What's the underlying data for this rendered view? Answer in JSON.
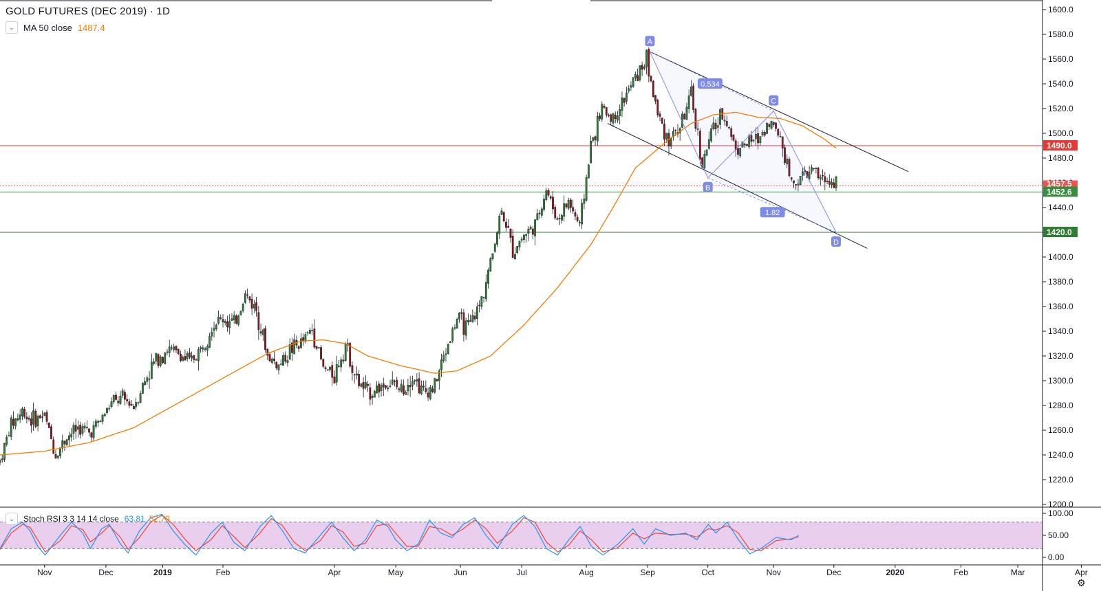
{
  "header": {
    "title": "GOLD FUTURES (DEC 2019) · 1D",
    "ma_label": "MA 50 close",
    "ma_value": "1487.4"
  },
  "stoch": {
    "label": "Stoch RSI 3 3 14 14 close",
    "k_value": "63.81",
    "d_value": "52.79",
    "upper_band": 80,
    "lower_band": 20,
    "ticks": [
      "100.00",
      "50.00",
      "0.00"
    ],
    "k_points": [
      [
        0,
        20
      ],
      [
        1.5,
        65
      ],
      [
        3,
        80
      ],
      [
        4,
        60
      ],
      [
        5,
        25
      ],
      [
        6,
        5
      ],
      [
        8,
        50
      ],
      [
        9.5,
        80
      ],
      [
        11,
        55
      ],
      [
        12,
        20
      ],
      [
        13.5,
        65
      ],
      [
        14.5,
        75
      ],
      [
        16,
        30
      ],
      [
        17,
        10
      ],
      [
        18.5,
        60
      ],
      [
        20,
        90
      ],
      [
        21.5,
        98
      ],
      [
        23,
        60
      ],
      [
        24.5,
        30
      ],
      [
        26,
        5
      ],
      [
        28,
        55
      ],
      [
        29.5,
        80
      ],
      [
        31,
        35
      ],
      [
        32.5,
        15
      ],
      [
        34.5,
        70
      ],
      [
        36,
        95
      ],
      [
        37.5,
        60
      ],
      [
        39,
        20
      ],
      [
        40.5,
        10
      ],
      [
        42.5,
        50
      ],
      [
        44,
        80
      ],
      [
        45.5,
        45
      ],
      [
        47,
        15
      ],
      [
        48.5,
        40
      ],
      [
        50,
        85
      ],
      [
        51.5,
        70
      ],
      [
        52.5,
        40
      ],
      [
        54,
        15
      ],
      [
        55.5,
        30
      ],
      [
        57,
        85
      ],
      [
        58.5,
        55
      ],
      [
        60,
        45
      ],
      [
        61.5,
        75
      ],
      [
        63,
        90
      ],
      [
        64.5,
        50
      ],
      [
        66,
        20
      ],
      [
        68,
        75
      ],
      [
        69.5,
        95
      ],
      [
        71,
        70
      ],
      [
        72.5,
        20
      ],
      [
        74,
        5
      ],
      [
        75.5,
        40
      ],
      [
        77,
        70
      ],
      [
        78.5,
        25
      ],
      [
        80,
        5
      ],
      [
        82,
        30
      ],
      [
        84,
        65
      ],
      [
        85.5,
        30
      ],
      [
        87,
        65
      ],
      [
        89,
        50
      ],
      [
        91,
        55
      ],
      [
        92.5,
        40
      ],
      [
        94,
        75
      ],
      [
        95,
        55
      ],
      [
        96.5,
        80
      ],
      [
        98,
        40
      ],
      [
        99.5,
        8
      ],
      [
        101,
        20
      ],
      [
        103,
        45
      ],
      [
        105,
        40
      ],
      [
        106,
        50
      ]
    ],
    "d_points": [
      [
        0,
        18
      ],
      [
        1.5,
        55
      ],
      [
        3,
        75
      ],
      [
        4,
        68
      ],
      [
        5,
        40
      ],
      [
        6,
        12
      ],
      [
        8,
        38
      ],
      [
        9.5,
        72
      ],
      [
        11,
        63
      ],
      [
        12,
        35
      ],
      [
        13.5,
        55
      ],
      [
        14.5,
        72
      ],
      [
        16,
        45
      ],
      [
        17,
        18
      ],
      [
        18.5,
        45
      ],
      [
        20,
        80
      ],
      [
        21.5,
        96
      ],
      [
        23,
        75
      ],
      [
        24.5,
        42
      ],
      [
        26,
        15
      ],
      [
        28,
        40
      ],
      [
        29.5,
        72
      ],
      [
        31,
        48
      ],
      [
        32.5,
        22
      ],
      [
        34.5,
        55
      ],
      [
        36,
        88
      ],
      [
        37.5,
        72
      ],
      [
        39,
        35
      ],
      [
        40.5,
        15
      ],
      [
        42.5,
        38
      ],
      [
        44,
        72
      ],
      [
        45.5,
        58
      ],
      [
        47,
        25
      ],
      [
        48.5,
        32
      ],
      [
        50,
        72
      ],
      [
        51.5,
        76
      ],
      [
        52.5,
        55
      ],
      [
        54,
        25
      ],
      [
        55.5,
        25
      ],
      [
        57,
        70
      ],
      [
        58.5,
        65
      ],
      [
        60,
        50
      ],
      [
        61.5,
        65
      ],
      [
        63,
        85
      ],
      [
        64.5,
        65
      ],
      [
        66,
        32
      ],
      [
        68,
        60
      ],
      [
        69.5,
        90
      ],
      [
        71,
        80
      ],
      [
        72.5,
        35
      ],
      [
        74,
        12
      ],
      [
        75.5,
        28
      ],
      [
        77,
        60
      ],
      [
        78.5,
        40
      ],
      [
        80,
        12
      ],
      [
        82,
        22
      ],
      [
        84,
        55
      ],
      [
        85.5,
        42
      ],
      [
        87,
        55
      ],
      [
        89,
        52
      ],
      [
        91,
        53
      ],
      [
        92.5,
        46
      ],
      [
        94,
        65
      ],
      [
        95,
        62
      ],
      [
        96.5,
        72
      ],
      [
        98,
        55
      ],
      [
        99.5,
        18
      ],
      [
        101,
        15
      ],
      [
        103,
        38
      ],
      [
        105,
        42
      ],
      [
        106,
        47
      ]
    ]
  },
  "price_axis": {
    "ticks": [
      "1600.0",
      "1580.0",
      "1560.0",
      "1540.0",
      "1520.0",
      "1500.0",
      "1480.0",
      "1460.0",
      "1440.0",
      "1420.0",
      "1400.0",
      "1380.0",
      "1360.0",
      "1340.0",
      "1320.0",
      "1300.0",
      "1280.0",
      "1260.0",
      "1240.0",
      "1220.0",
      "1200.0"
    ]
  },
  "time_axis": {
    "labels": [
      {
        "text": "Nov",
        "week": 4,
        "bold": false
      },
      {
        "text": "Dec",
        "week": 9.5,
        "bold": false
      },
      {
        "text": "2019",
        "week": 14.6,
        "bold": true
      },
      {
        "text": "Feb",
        "week": 20,
        "bold": false
      },
      {
        "text": "Apr",
        "week": 30,
        "bold": false
      },
      {
        "text": "May",
        "week": 35.5,
        "bold": false
      },
      {
        "text": "Jun",
        "week": 41.3,
        "bold": false
      },
      {
        "text": "Jul",
        "week": 46.8,
        "bold": false
      },
      {
        "text": "Aug",
        "week": 52.6,
        "bold": false
      },
      {
        "text": "Sep",
        "week": 58.1,
        "bold": false
      },
      {
        "text": "Oct",
        "week": 63.5,
        "bold": false
      },
      {
        "text": "Nov",
        "week": 69.4,
        "bold": false
      },
      {
        "text": "Dec",
        "week": 74.8,
        "bold": false
      },
      {
        "text": "2020",
        "week": 80.3,
        "bold": true
      },
      {
        "text": "Feb",
        "week": 86.2,
        "bold": false
      },
      {
        "text": "Mar",
        "week": 91.3,
        "bold": false
      },
      {
        "text": "Apr",
        "week": 97.0,
        "bold": false
      }
    ]
  },
  "levels": [
    {
      "label": "1490.0",
      "price": 1490.0,
      "color": "#e53935",
      "text_color": "#ffffff"
    },
    {
      "label": "1452.6",
      "price": 1452.6,
      "color": "#388e3c",
      "text_color": "#ffffff"
    },
    {
      "label": "1420.0",
      "price": 1420.0,
      "color": "#2e7d32",
      "text_color": "#ffffff"
    }
  ],
  "last_price": {
    "label": "1457.5",
    "price": 1457.5,
    "color": "#ef5350"
  },
  "pattern": {
    "points": [
      {
        "label": "A",
        "week": 58.3,
        "price": 1566
      },
      {
        "label": "B",
        "week": 63.5,
        "price": 1464
      },
      {
        "label": "C",
        "week": 69.4,
        "price": 1518
      },
      {
        "label": "D",
        "week": 75.0,
        "price": 1420
      }
    ],
    "ratios": [
      {
        "label": "0.534",
        "week": 63.7,
        "price": 1540
      },
      {
        "label": "1.82",
        "week": 69.3,
        "price": 1436
      }
    ],
    "color": "#7e8ce8"
  },
  "trendlines": [
    {
      "w1": 58.3,
      "p1": 1566,
      "w2": 81.5,
      "p2": 1469
    },
    {
      "w1": 54.5,
      "p1": 1508,
      "w2": 77.8,
      "p2": 1407
    }
  ],
  "chart_data": {
    "type": "candlestick",
    "title": "GOLD FUTURES (DEC 2019) · 1D",
    "ylim": [
      1200,
      1600
    ],
    "colors": {
      "up": "#2e7d32",
      "down": "#8b1a1a",
      "ma": "#f57c00"
    },
    "price_path": [
      [
        0,
        1235
      ],
      [
        1,
        1265
      ],
      [
        2,
        1275
      ],
      [
        3,
        1268
      ],
      [
        4,
        1272
      ],
      [
        5,
        1240
      ],
      [
        6,
        1255
      ],
      [
        7,
        1262
      ],
      [
        8,
        1258
      ],
      [
        9,
        1268
      ],
      [
        10,
        1282
      ],
      [
        11,
        1285
      ],
      [
        12,
        1280
      ],
      [
        13,
        1300
      ],
      [
        14,
        1318
      ],
      [
        15,
        1325
      ],
      [
        16,
        1322
      ],
      [
        17,
        1315
      ],
      [
        18,
        1325
      ],
      [
        19,
        1345
      ],
      [
        20,
        1350
      ],
      [
        21,
        1345
      ],
      [
        22,
        1370
      ],
      [
        23,
        1358
      ],
      [
        24,
        1320
      ],
      [
        25,
        1312
      ],
      [
        26,
        1325
      ],
      [
        27,
        1330
      ],
      [
        28,
        1342
      ],
      [
        29,
        1310
      ],
      [
        30,
        1305
      ],
      [
        31,
        1330
      ],
      [
        32,
        1300
      ],
      [
        33,
        1290
      ],
      [
        34,
        1295
      ],
      [
        35,
        1298
      ],
      [
        36,
        1292
      ],
      [
        37,
        1305
      ],
      [
        38,
        1290
      ],
      [
        39,
        1296
      ],
      [
        40,
        1325
      ],
      [
        41,
        1350
      ],
      [
        42,
        1342
      ],
      [
        43,
        1360
      ],
      [
        44,
        1395
      ],
      [
        45,
        1440
      ],
      [
        46,
        1405
      ],
      [
        47,
        1418
      ],
      [
        48,
        1425
      ],
      [
        49,
        1455
      ],
      [
        50,
        1430
      ],
      [
        51,
        1445
      ],
      [
        52,
        1425
      ],
      [
        53,
        1490
      ],
      [
        54,
        1520
      ],
      [
        55,
        1512
      ],
      [
        56,
        1528
      ],
      [
        57,
        1545
      ],
      [
        58,
        1560
      ],
      [
        59,
        1515
      ],
      [
        60,
        1495
      ],
      [
        61,
        1505
      ],
      [
        62,
        1530
      ],
      [
        63,
        1475
      ],
      [
        64,
        1505
      ],
      [
        65,
        1515
      ],
      [
        66,
        1488
      ],
      [
        67,
        1492
      ],
      [
        68,
        1495
      ],
      [
        69,
        1510
      ],
      [
        70,
        1498
      ],
      [
        71,
        1460
      ],
      [
        72,
        1465
      ],
      [
        73,
        1470
      ],
      [
        74,
        1460
      ],
      [
        75,
        1462
      ]
    ],
    "ma_path": [
      [
        0,
        1240
      ],
      [
        4,
        1243
      ],
      [
        8,
        1250
      ],
      [
        12,
        1262
      ],
      [
        16,
        1282
      ],
      [
        20,
        1302
      ],
      [
        24,
        1322
      ],
      [
        27,
        1332
      ],
      [
        29,
        1333
      ],
      [
        31,
        1330
      ],
      [
        33,
        1320
      ],
      [
        36,
        1312
      ],
      [
        39,
        1306
      ],
      [
        41,
        1308
      ],
      [
        44,
        1320
      ],
      [
        47,
        1345
      ],
      [
        50,
        1375
      ],
      [
        53,
        1410
      ],
      [
        55,
        1440
      ],
      [
        57,
        1472
      ],
      [
        60,
        1495
      ],
      [
        62,
        1508
      ],
      [
        64,
        1515
      ],
      [
        66,
        1517
      ],
      [
        68,
        1513
      ],
      [
        70,
        1512
      ],
      [
        72,
        1506
      ],
      [
        74,
        1495
      ],
      [
        75,
        1488
      ]
    ]
  }
}
